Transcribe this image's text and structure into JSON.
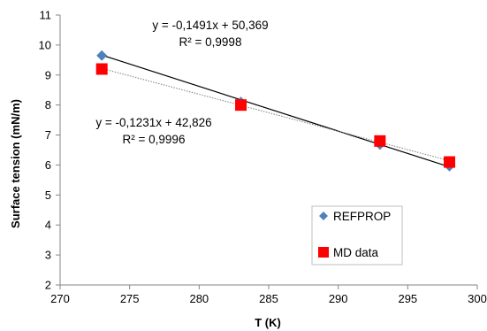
{
  "chart_data": {
    "type": "scatter",
    "title": "",
    "xlabel": "T (K)",
    "ylabel": "Surface tension (mN/m)",
    "xlim": [
      270,
      300
    ],
    "ylim": [
      2,
      11
    ],
    "xticks": [
      270,
      275,
      280,
      285,
      290,
      295,
      300
    ],
    "yticks": [
      2,
      3,
      4,
      5,
      6,
      7,
      8,
      9,
      10,
      11
    ],
    "grid": false,
    "legend_position": "bottom-right",
    "series": [
      {
        "name": "REFPROP",
        "marker": "diamond",
        "color": "#4f81bd",
        "x": [
          273,
          283,
          293,
          298
        ],
        "y": [
          9.65,
          8.1,
          6.68,
          5.96
        ],
        "trendline": {
          "style": "solid",
          "color": "#000000",
          "slope": -0.1491,
          "intercept": 50.369
        }
      },
      {
        "name": "MD data",
        "marker": "square",
        "color": "#ff0000",
        "x": [
          273,
          283,
          293,
          298
        ],
        "y": [
          9.2,
          8.0,
          6.8,
          6.1
        ],
        "trendline": {
          "style": "dotted",
          "color": "#7f7f7f",
          "slope": -0.1231,
          "intercept": 42.826
        }
      }
    ],
    "annotations": [
      {
        "equation": "y = -0,1491x + 50,369",
        "r2": "R² = 0,9998"
      },
      {
        "equation": "y = -0,1231x + 42,826",
        "r2": "R² = 0,9996"
      }
    ]
  }
}
